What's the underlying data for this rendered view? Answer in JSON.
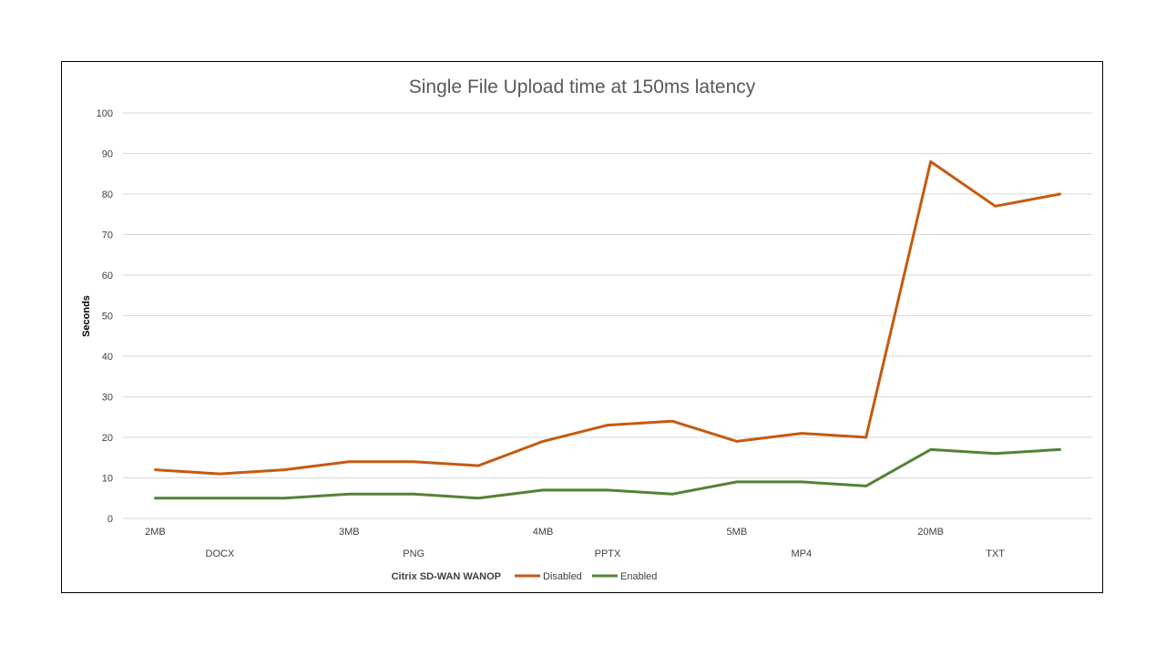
{
  "chart_data": {
    "type": "line",
    "title": "Single File Upload time at 150ms latency",
    "ylabel": "Seconds",
    "ylim": [
      0,
      100
    ],
    "yticks": [
      0,
      10,
      20,
      30,
      40,
      50,
      60,
      70,
      80,
      90,
      100
    ],
    "grid": true,
    "categories": [
      "2MB DOCX",
      "",
      "",
      "3MB PNG",
      "",
      "",
      "4MB PPTX",
      "",
      "",
      "5MB MP4",
      "",
      "",
      "20MB TXT",
      "",
      ""
    ],
    "x_group_labels": [
      {
        "size": "2MB",
        "format": "DOCX"
      },
      {
        "size": "3MB",
        "format": "PNG"
      },
      {
        "size": "4MB",
        "format": "PPTX"
      },
      {
        "size": "5MB",
        "format": "MP4"
      },
      {
        "size": "20MB",
        "format": "TXT"
      }
    ],
    "legend_title": "Citrix SD-WAN WANOP",
    "legend_position": "bottom",
    "series": [
      {
        "name": "Disabled",
        "color": "#C55A11",
        "values": [
          12,
          11,
          12,
          14,
          14,
          13,
          19,
          23,
          24,
          19,
          21,
          20,
          88,
          77,
          80
        ]
      },
      {
        "name": "Enabled",
        "color": "#548235",
        "values": [
          5,
          5,
          5,
          6,
          6,
          5,
          7,
          7,
          6,
          9,
          9,
          8,
          17,
          16,
          17
        ]
      }
    ]
  }
}
